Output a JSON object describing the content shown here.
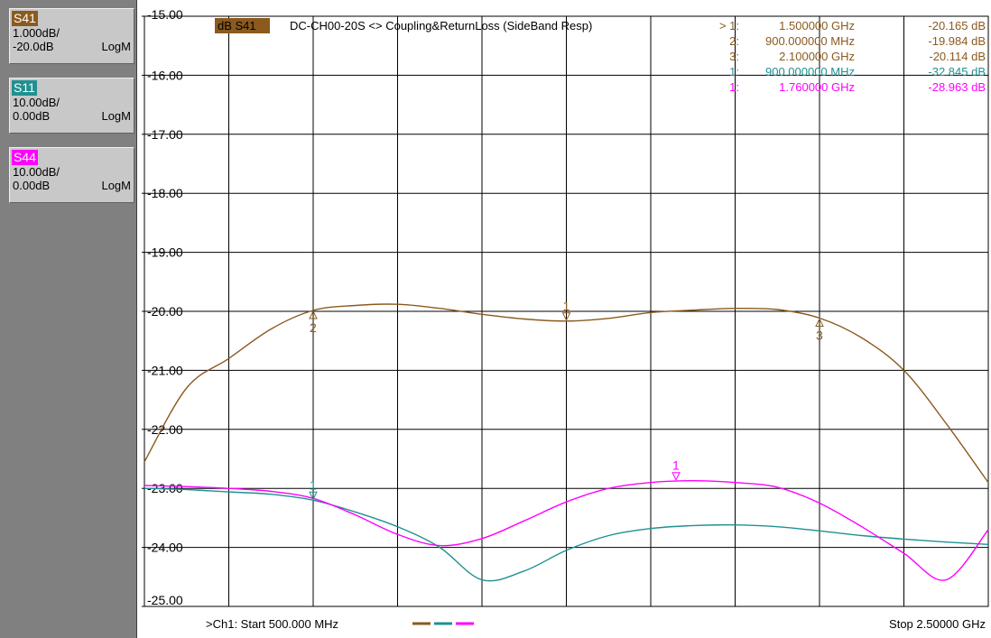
{
  "traces": [
    {
      "name": "S41",
      "scale": "1.000dB/",
      "ref": "-20.0dB",
      "format": "LogM",
      "color": "#8b5a1e"
    },
    {
      "name": "S11",
      "scale": "10.00dB/",
      "ref": "0.00dB",
      "format": "LogM",
      "color": "#209090"
    },
    {
      "name": "S44",
      "scale": "10.00dB/",
      "ref": "0.00dB",
      "format": "LogM",
      "color": "#ff00ff"
    }
  ],
  "chart_data": {
    "type": "line",
    "title": "DC-CH00-20S <> Coupling&ReturnLoss (SideBand Resp)",
    "active_trace_label": "dB S41",
    "x_unit": "GHz",
    "xlim": [
      0.5,
      2.5
    ],
    "ylim": [
      -25,
      -15
    ],
    "y_tick_labels": [
      "-15.00",
      "-16.00",
      "-17.00",
      "-18.00",
      "-19.00",
      "-20.00",
      "-21.00",
      "-22.00",
      "-23.00",
      "-24.00",
      "-25.00"
    ],
    "grid": true,
    "reference_level": -20,
    "series": [
      {
        "name": "S41",
        "color": "#8b5a1e",
        "x": [
          0.5,
          0.6,
          0.7,
          0.8,
          0.9,
          1.0,
          1.1,
          1.2,
          1.3,
          1.4,
          1.5,
          1.6,
          1.7,
          1.8,
          1.9,
          2.0,
          2.1,
          2.2,
          2.3,
          2.4,
          2.5
        ],
        "y": [
          -22.55,
          -21.3,
          -20.8,
          -20.3,
          -19.984,
          -19.9,
          -19.88,
          -19.95,
          -20.05,
          -20.13,
          -20.165,
          -20.12,
          -20.02,
          -19.98,
          -19.95,
          -19.97,
          -20.114,
          -20.45,
          -21.0,
          -21.9,
          -22.9
        ]
      },
      {
        "name": "S11",
        "color": "#209090",
        "x": [
          0.5,
          0.6,
          0.7,
          0.8,
          0.9,
          1.0,
          1.1,
          1.2,
          1.3,
          1.4,
          1.5,
          1.6,
          1.7,
          1.8,
          1.9,
          2.0,
          2.1,
          2.2,
          2.3,
          2.4,
          2.5
        ],
        "y": [
          -23.0,
          -23.02,
          -23.06,
          -23.1,
          -23.2,
          -23.4,
          -23.65,
          -24.0,
          -24.55,
          -24.4,
          -24.05,
          -23.8,
          -23.68,
          -23.63,
          -23.62,
          -23.65,
          -23.72,
          -23.8,
          -23.86,
          -23.91,
          -23.95
        ]
      },
      {
        "name": "S44",
        "color": "#ff00ff",
        "x": [
          0.5,
          0.6,
          0.7,
          0.8,
          0.9,
          1.0,
          1.1,
          1.2,
          1.3,
          1.4,
          1.5,
          1.6,
          1.7,
          1.8,
          1.9,
          2.0,
          2.1,
          2.2,
          2.3,
          2.4,
          2.5
        ],
        "y": [
          -22.95,
          -22.97,
          -23.0,
          -23.05,
          -23.17,
          -23.45,
          -23.78,
          -23.97,
          -23.85,
          -23.55,
          -23.23,
          -23.0,
          -22.9,
          -22.87,
          -22.9,
          -22.98,
          -23.25,
          -23.65,
          -24.1,
          -24.55,
          -23.7
        ]
      }
    ],
    "markers": [
      {
        "trace": "S41",
        "label": "1",
        "x": 1.5,
        "y": -20.165,
        "style": "down"
      },
      {
        "trace": "S41",
        "label": "2",
        "x": 0.9,
        "y": -19.984,
        "style": "up"
      },
      {
        "trace": "S41",
        "label": "3",
        "x": 2.1,
        "y": -20.114,
        "style": "up"
      },
      {
        "trace": "S11",
        "label": "1",
        "x": 0.9,
        "y": -23.2,
        "style": "down"
      },
      {
        "trace": "S44",
        "label": "1",
        "x": 1.76,
        "y": -22.87,
        "style": "down"
      }
    ],
    "marker_readout": [
      {
        "prefix": ">",
        "num": "1:",
        "freq": "1.500000 GHz",
        "value": "-20.165 dB",
        "color": "#8b5a1e"
      },
      {
        "prefix": "",
        "num": "2:",
        "freq": "900.000000 MHz",
        "value": "-19.984 dB",
        "color": "#8b5a1e"
      },
      {
        "prefix": "",
        "num": "3:",
        "freq": "2.100000 GHz",
        "value": "-20.114 dB",
        "color": "#8b5a1e"
      },
      {
        "prefix": "",
        "num": "1:",
        "freq": "900.000000 MHz",
        "value": "-32.845 dB",
        "color": "#209090"
      },
      {
        "prefix": "",
        "num": "1:",
        "freq": "1.760000 GHz",
        "value": "-28.963 dB",
        "color": "#ff00ff"
      }
    ],
    "footer_start": ">Ch1: Start  500.000 MHz",
    "footer_stop": "Stop  2.50000 GHz"
  }
}
